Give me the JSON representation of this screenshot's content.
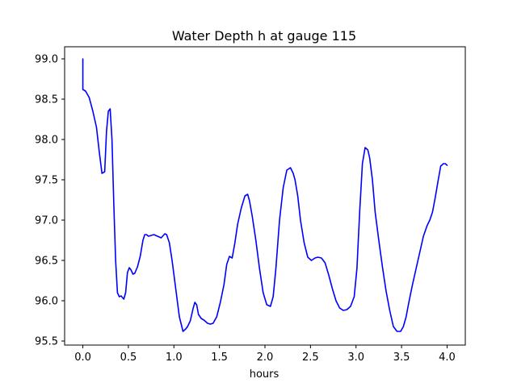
{
  "chart_data": {
    "type": "line",
    "title": "Water Depth h at gauge 115",
    "xlabel": "hours",
    "ylabel": "",
    "xlim": [
      -0.2,
      4.2
    ],
    "ylim": [
      95.45,
      99.15
    ],
    "xticks": [
      0.0,
      0.5,
      1.0,
      1.5,
      2.0,
      2.5,
      3.0,
      3.5,
      4.0
    ],
    "xtick_labels": [
      "0.0",
      "0.5",
      "1.0",
      "1.5",
      "2.0",
      "2.5",
      "3.0",
      "3.5",
      "4.0"
    ],
    "yticks": [
      95.5,
      96.0,
      96.5,
      97.0,
      97.5,
      98.0,
      98.5,
      99.0
    ],
    "ytick_labels": [
      "95.5",
      "96.0",
      "96.5",
      "97.0",
      "97.5",
      "98.0",
      "98.5",
      "99.0"
    ],
    "grid": false,
    "series": [
      {
        "color": "#0000ff",
        "x": [
          0.0,
          0.0,
          0.03,
          0.07,
          0.11,
          0.15,
          0.18,
          0.21,
          0.24,
          0.26,
          0.28,
          0.3,
          0.32,
          0.34,
          0.36,
          0.38,
          0.4,
          0.42,
          0.45,
          0.47,
          0.49,
          0.51,
          0.53,
          0.55,
          0.57,
          0.6,
          0.63,
          0.66,
          0.68,
          0.7,
          0.72,
          0.75,
          0.78,
          0.82,
          0.86,
          0.9,
          0.92,
          0.95,
          0.98,
          1.02,
          1.06,
          1.1,
          1.13,
          1.15,
          1.18,
          1.21,
          1.23,
          1.25,
          1.27,
          1.3,
          1.33,
          1.37,
          1.4,
          1.43,
          1.47,
          1.51,
          1.55,
          1.58,
          1.61,
          1.64,
          1.67,
          1.7,
          1.74,
          1.78,
          1.81,
          1.83,
          1.86,
          1.9,
          1.94,
          1.98,
          2.02,
          2.06,
          2.09,
          2.12,
          2.16,
          2.2,
          2.24,
          2.28,
          2.31,
          2.33,
          2.36,
          2.39,
          2.43,
          2.47,
          2.51,
          2.55,
          2.58,
          2.62,
          2.66,
          2.7,
          2.74,
          2.78,
          2.82,
          2.86,
          2.9,
          2.94,
          2.98,
          3.01,
          3.04,
          3.07,
          3.1,
          3.13,
          3.15,
          3.18,
          3.21,
          3.25,
          3.29,
          3.33,
          3.37,
          3.41,
          3.45,
          3.49,
          3.52,
          3.55,
          3.58,
          3.62,
          3.66,
          3.7,
          3.74,
          3.78,
          3.81,
          3.84,
          3.87,
          3.9,
          3.93,
          3.96,
          3.98,
          4.0
        ],
        "y": [
          99.0,
          98.62,
          98.6,
          98.52,
          98.35,
          98.15,
          97.85,
          97.58,
          97.6,
          98.1,
          98.35,
          98.38,
          98.0,
          97.2,
          96.5,
          96.1,
          96.05,
          96.06,
          96.02,
          96.1,
          96.35,
          96.41,
          96.38,
          96.33,
          96.34,
          96.42,
          96.55,
          96.75,
          96.82,
          96.82,
          96.8,
          96.81,
          96.82,
          96.8,
          96.78,
          96.83,
          96.82,
          96.72,
          96.5,
          96.15,
          95.8,
          95.62,
          95.65,
          95.68,
          95.75,
          95.9,
          95.98,
          95.95,
          95.83,
          95.78,
          95.76,
          95.72,
          95.71,
          95.72,
          95.8,
          95.98,
          96.2,
          96.45,
          96.55,
          96.53,
          96.72,
          96.95,
          97.15,
          97.3,
          97.32,
          97.24,
          97.05,
          96.75,
          96.4,
          96.1,
          95.95,
          95.93,
          96.05,
          96.4,
          97.0,
          97.4,
          97.62,
          97.65,
          97.58,
          97.5,
          97.3,
          97.0,
          96.72,
          96.54,
          96.5,
          96.53,
          96.54,
          96.53,
          96.47,
          96.32,
          96.15,
          96.0,
          95.91,
          95.88,
          95.89,
          95.93,
          96.05,
          96.4,
          97.1,
          97.7,
          97.9,
          97.87,
          97.77,
          97.5,
          97.1,
          96.75,
          96.42,
          96.12,
          95.88,
          95.68,
          95.62,
          95.62,
          95.68,
          95.8,
          95.98,
          96.2,
          96.4,
          96.6,
          96.8,
          96.93,
          97.0,
          97.1,
          97.28,
          97.48,
          97.67,
          97.7,
          97.7,
          97.68
        ]
      }
    ]
  }
}
